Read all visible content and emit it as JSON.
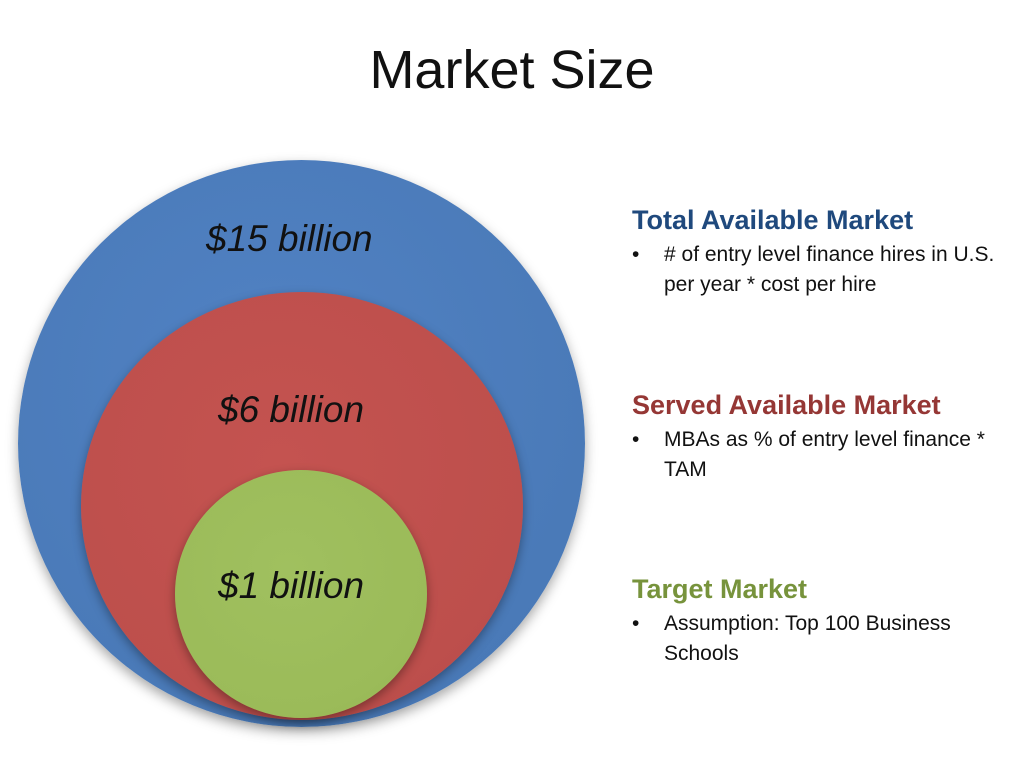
{
  "title": "Market Size",
  "circles": {
    "total": {
      "value": "$15 billion",
      "color": "#4f81bd"
    },
    "served": {
      "value": "$6 billion",
      "color": "#c0504d"
    },
    "target": {
      "value": "$1 billion",
      "color": "#9bbb59"
    }
  },
  "legend": {
    "total": {
      "heading": "Total Available Market",
      "heading_color": "#1f497d",
      "bullet": "# of entry level finance hires in U.S. per year * cost per hire"
    },
    "served": {
      "heading": "Served Available Market",
      "heading_color": "#953735",
      "bullet": "MBAs as % of entry level finance * TAM"
    },
    "target": {
      "heading": "Target Market",
      "heading_color": "#77933c",
      "bullet": "Assumption: Top 100 Business Schools"
    },
    "bullet_symbol": "•"
  }
}
